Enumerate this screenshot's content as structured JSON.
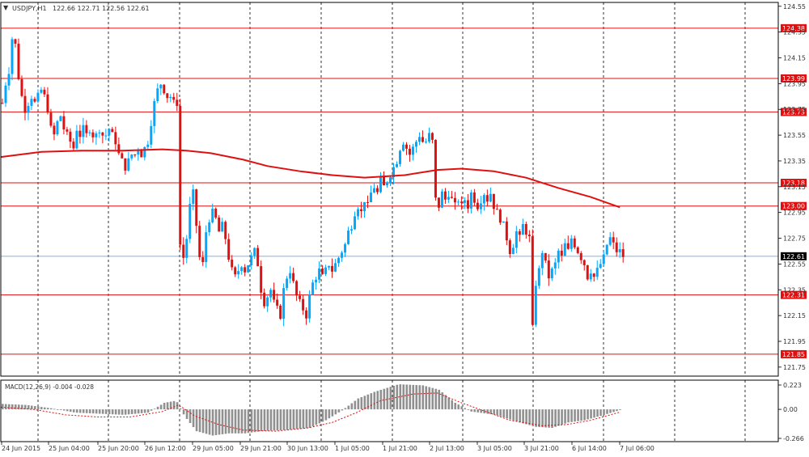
{
  "header": {
    "marker": "▼",
    "symbol": "USDJPY,H1",
    "ohlc": "122.66 122.71 122.56 122.61"
  },
  "macd_panel": {
    "label": "MACD(12,26,9) -0.004 -0.028"
  },
  "colors": {
    "bull_candle": "#00a8ff",
    "bear_candle": "#e01010",
    "moving_average": "#e01010",
    "level_line": "#e01010",
    "current_price_line": "#7090b0",
    "macd_histogram": "#909090",
    "macd_signal": "#e01010",
    "grid": "#000000",
    "axis_text": "#333333"
  },
  "chart_data": [
    {
      "type": "candlestick",
      "symbol": "USDJPY",
      "timeframe": "H1",
      "ylim": [
        121.68,
        124.58
      ],
      "y_ticks": [
        "124.55",
        "124.35",
        "124.15",
        "123.95",
        "123.75",
        "123.55",
        "123.35",
        "123.15",
        "122.95",
        "122.75",
        "122.55",
        "122.35",
        "122.15",
        "121.95",
        "121.75"
      ],
      "x_ticks": [
        "24 Jun 2015",
        "25 Jun 04:00",
        "25 Jun 20:00",
        "26 Jun 12:00",
        "29 Jun 05:00",
        "29 Jun 21:00",
        "30 Jun 13:00",
        "1 Jul 05:00",
        "1 Jul 21:00",
        "2 Jul 13:00",
        "3 Jul 05:00",
        "3 Jul 21:00",
        "6 Jul 14:00",
        "7 Jul 06:00"
      ],
      "horizontal_levels": [
        124.38,
        123.99,
        123.73,
        123.18,
        123.0,
        122.31,
        121.85
      ],
      "level_labels": [
        "124.38",
        "123.99",
        "123.73",
        "123.18",
        "123.00",
        "122.31",
        "121.85"
      ],
      "current_price": 122.61,
      "current_price_label": "122.61",
      "grid": "vertical dashed",
      "close_path": [
        [
          0,
          123.8
        ],
        [
          4,
          123.95
        ],
        [
          8,
          124.05
        ],
        [
          12,
          124.3
        ],
        [
          16,
          124.25
        ],
        [
          20,
          124.0
        ],
        [
          24,
          123.85
        ],
        [
          28,
          123.75
        ],
        [
          32,
          123.8
        ],
        [
          36,
          123.85
        ],
        [
          40,
          123.8
        ],
        [
          44,
          123.85
        ],
        [
          48,
          123.9
        ],
        [
          52,
          123.85
        ],
        [
          56,
          123.75
        ],
        [
          60,
          123.6
        ],
        [
          64,
          123.55
        ],
        [
          68,
          123.65
        ],
        [
          72,
          123.7
        ],
        [
          76,
          123.6
        ],
        [
          80,
          123.55
        ],
        [
          84,
          123.5
        ],
        [
          88,
          123.45
        ],
        [
          92,
          123.6
        ],
        [
          96,
          123.55
        ],
        [
          100,
          123.6
        ],
        [
          104,
          123.55
        ],
        [
          108,
          123.6
        ],
        [
          112,
          123.55
        ],
        [
          116,
          123.55
        ],
        [
          120,
          123.6
        ],
        [
          124,
          123.55
        ],
        [
          128,
          123.55
        ],
        [
          132,
          123.6
        ],
        [
          136,
          123.55
        ],
        [
          140,
          123.5
        ],
        [
          144,
          123.4
        ],
        [
          148,
          123.35
        ],
        [
          152,
          123.3
        ],
        [
          156,
          123.35
        ],
        [
          160,
          123.4
        ],
        [
          164,
          123.4
        ],
        [
          168,
          123.45
        ],
        [
          172,
          123.4
        ],
        [
          176,
          123.45
        ],
        [
          180,
          123.5
        ],
        [
          184,
          123.65
        ],
        [
          188,
          123.8
        ],
        [
          192,
          123.9
        ],
        [
          196,
          123.95
        ],
        [
          200,
          123.9
        ],
        [
          204,
          123.85
        ],
        [
          208,
          123.85
        ],
        [
          212,
          123.8
        ],
        [
          216,
          123.8
        ],
        [
          220,
          122.7
        ],
        [
          224,
          122.6
        ],
        [
          228,
          122.75
        ],
        [
          232,
          123.0
        ],
        [
          236,
          123.1
        ],
        [
          240,
          122.85
        ],
        [
          244,
          122.6
        ],
        [
          248,
          122.55
        ],
        [
          252,
          122.8
        ],
        [
          256,
          122.9
        ],
        [
          260,
          122.95
        ],
        [
          264,
          122.9
        ],
        [
          268,
          122.8
        ],
        [
          272,
          122.85
        ],
        [
          276,
          122.75
        ],
        [
          280,
          122.6
        ],
        [
          284,
          122.5
        ],
        [
          288,
          122.45
        ],
        [
          292,
          122.5
        ],
        [
          296,
          122.55
        ],
        [
          300,
          122.5
        ],
        [
          304,
          122.55
        ],
        [
          308,
          122.6
        ],
        [
          312,
          122.65
        ],
        [
          316,
          122.55
        ],
        [
          320,
          122.35
        ],
        [
          324,
          122.25
        ],
        [
          328,
          122.3
        ],
        [
          332,
          122.35
        ],
        [
          336,
          122.25
        ],
        [
          340,
          122.2
        ],
        [
          344,
          122.15
        ],
        [
          348,
          122.35
        ],
        [
          352,
          122.45
        ],
        [
          356,
          122.5
        ],
        [
          360,
          122.4
        ],
        [
          364,
          122.3
        ],
        [
          368,
          122.25
        ],
        [
          372,
          122.2
        ],
        [
          376,
          122.15
        ],
        [
          380,
          122.3
        ],
        [
          384,
          122.4
        ],
        [
          388,
          122.45
        ],
        [
          392,
          122.5
        ],
        [
          396,
          122.45
        ],
        [
          400,
          122.5
        ],
        [
          404,
          122.55
        ],
        [
          408,
          122.5
        ],
        [
          412,
          122.55
        ],
        [
          416,
          122.6
        ],
        [
          420,
          122.65
        ],
        [
          424,
          122.7
        ],
        [
          428,
          122.8
        ],
        [
          432,
          122.85
        ],
        [
          436,
          122.95
        ],
        [
          440,
          123.0
        ],
        [
          444,
          122.95
        ],
        [
          448,
          123.05
        ],
        [
          452,
          123.0
        ],
        [
          456,
          123.1
        ],
        [
          460,
          123.15
        ],
        [
          464,
          123.1
        ],
        [
          468,
          123.2
        ],
        [
          472,
          123.15
        ],
        [
          476,
          123.2
        ],
        [
          480,
          123.25
        ],
        [
          484,
          123.3
        ],
        [
          488,
          123.35
        ],
        [
          492,
          123.45
        ],
        [
          496,
          123.5
        ],
        [
          500,
          123.45
        ],
        [
          504,
          123.4
        ],
        [
          508,
          123.45
        ],
        [
          512,
          123.5
        ],
        [
          516,
          123.55
        ],
        [
          520,
          123.5
        ],
        [
          524,
          123.5
        ],
        [
          528,
          123.55
        ],
        [
          532,
          123.5
        ],
        [
          536,
          123.05
        ],
        [
          540,
          123.0
        ],
        [
          544,
          123.1
        ],
        [
          548,
          123.05
        ],
        [
          552,
          123.1
        ],
        [
          556,
          123.05
        ],
        [
          560,
          123.0
        ],
        [
          564,
          123.05
        ],
        [
          568,
          123.0
        ],
        [
          572,
          123.05
        ],
        [
          576,
          123.0
        ],
        [
          580,
          123.1
        ],
        [
          584,
          123.05
        ],
        [
          588,
          123.0
        ],
        [
          592,
          123.05
        ],
        [
          596,
          123.1
        ],
        [
          600,
          123.05
        ],
        [
          604,
          123.1
        ],
        [
          608,
          123.0
        ],
        [
          612,
          122.95
        ],
        [
          616,
          122.9
        ],
        [
          620,
          122.85
        ],
        [
          624,
          122.75
        ],
        [
          628,
          122.65
        ],
        [
          632,
          122.7
        ],
        [
          636,
          122.8
        ],
        [
          640,
          122.75
        ],
        [
          644,
          122.85
        ],
        [
          648,
          122.8
        ],
        [
          652,
          122.75
        ],
        [
          656,
          122.05
        ],
        [
          660,
          122.4
        ],
        [
          664,
          122.5
        ],
        [
          668,
          122.65
        ],
        [
          672,
          122.55
        ],
        [
          676,
          122.45
        ],
        [
          680,
          122.5
        ],
        [
          684,
          122.55
        ],
        [
          688,
          122.65
        ],
        [
          692,
          122.6
        ],
        [
          696,
          122.7
        ],
        [
          700,
          122.65
        ],
        [
          704,
          122.75
        ],
        [
          708,
          122.7
        ],
        [
          712,
          122.65
        ],
        [
          716,
          122.6
        ],
        [
          720,
          122.55
        ],
        [
          724,
          122.45
        ],
        [
          728,
          122.5
        ],
        [
          732,
          122.45
        ],
        [
          736,
          122.5
        ],
        [
          740,
          122.55
        ],
        [
          744,
          122.6
        ],
        [
          748,
          122.7
        ],
        [
          752,
          122.75
        ],
        [
          756,
          122.7
        ],
        [
          760,
          122.65
        ],
        [
          764,
          122.65
        ],
        [
          768,
          122.61
        ]
      ],
      "moving_average": [
        [
          0,
          123.38
        ],
        [
          50,
          123.42
        ],
        [
          100,
          123.43
        ],
        [
          150,
          123.43
        ],
        [
          200,
          123.44
        ],
        [
          230,
          123.43
        ],
        [
          260,
          123.41
        ],
        [
          300,
          123.36
        ],
        [
          330,
          123.31
        ],
        [
          370,
          123.27
        ],
        [
          410,
          123.24
        ],
        [
          450,
          123.22
        ],
        [
          500,
          123.24
        ],
        [
          540,
          123.28
        ],
        [
          570,
          123.29
        ],
        [
          610,
          123.27
        ],
        [
          650,
          123.22
        ],
        [
          690,
          123.14
        ],
        [
          730,
          123.07
        ],
        [
          766,
          122.99
        ]
      ]
    },
    {
      "type": "histogram",
      "title": "MACD(12,26,9)",
      "ylim": [
        -0.266,
        0.223
      ],
      "y_ticks": [
        "0.223",
        "0.00",
        "-0.266"
      ],
      "histogram": [
        [
          0,
          0.05
        ],
        [
          30,
          0.04
        ],
        [
          60,
          0.01
        ],
        [
          90,
          -0.03
        ],
        [
          120,
          -0.04
        ],
        [
          150,
          -0.05
        ],
        [
          180,
          -0.03
        ],
        [
          200,
          0.06
        ],
        [
          215,
          0.08
        ],
        [
          225,
          -0.06
        ],
        [
          240,
          -0.2
        ],
        [
          260,
          -0.24
        ],
        [
          280,
          -0.22
        ],
        [
          300,
          -0.22
        ],
        [
          320,
          -0.2
        ],
        [
          350,
          -0.19
        ],
        [
          380,
          -0.17
        ],
        [
          400,
          -0.1
        ],
        [
          420,
          -0.01
        ],
        [
          440,
          0.1
        ],
        [
          460,
          0.16
        ],
        [
          490,
          0.23
        ],
        [
          520,
          0.22
        ],
        [
          540,
          0.18
        ],
        [
          560,
          0.06
        ],
        [
          580,
          -0.02
        ],
        [
          610,
          -0.05
        ],
        [
          640,
          -0.12
        ],
        [
          660,
          -0.16
        ],
        [
          680,
          -0.17
        ],
        [
          700,
          -0.12
        ],
        [
          720,
          -0.1
        ],
        [
          740,
          -0.06
        ],
        [
          765,
          -0.004
        ]
      ],
      "signal": [
        [
          0,
          0.02
        ],
        [
          40,
          0.0
        ],
        [
          80,
          -0.05
        ],
        [
          120,
          -0.07
        ],
        [
          160,
          -0.07
        ],
        [
          200,
          -0.02
        ],
        [
          220,
          0.04
        ],
        [
          240,
          -0.06
        ],
        [
          270,
          -0.14
        ],
        [
          300,
          -0.19
        ],
        [
          340,
          -0.2
        ],
        [
          380,
          -0.17
        ],
        [
          410,
          -0.12
        ],
        [
          440,
          -0.03
        ],
        [
          470,
          0.08
        ],
        [
          510,
          0.14
        ],
        [
          540,
          0.15
        ],
        [
          570,
          0.06
        ],
        [
          600,
          -0.02
        ],
        [
          630,
          -0.1
        ],
        [
          670,
          -0.15
        ],
        [
          700,
          -0.14
        ],
        [
          730,
          -0.1
        ],
        [
          765,
          -0.028
        ]
      ]
    }
  ]
}
